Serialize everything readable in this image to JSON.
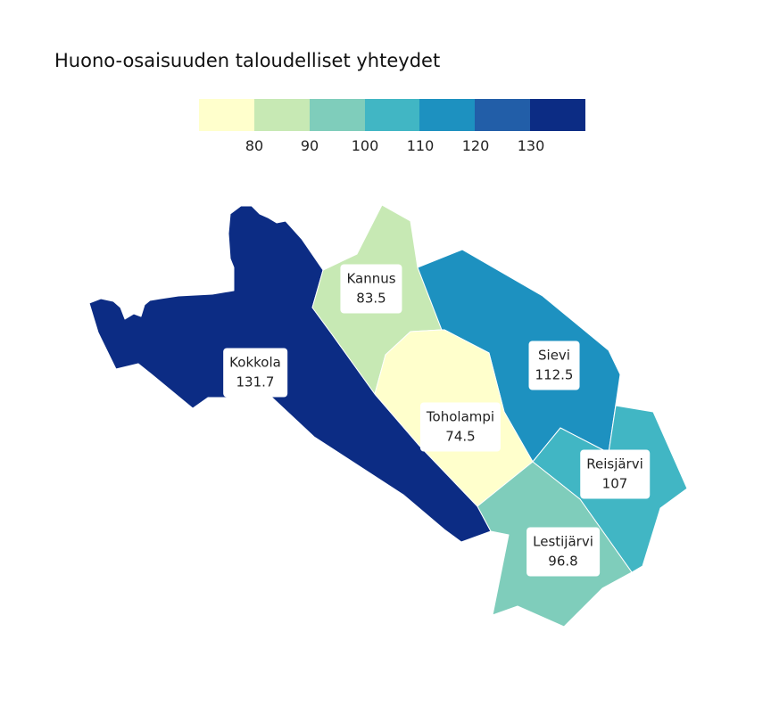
{
  "title": "Huono-osaisuuden taloudelliset yhteydet",
  "legend": {
    "colors": [
      "#ffffcc",
      "#c7e9b4",
      "#7fcdbb",
      "#41b6c4",
      "#1d91c0",
      "#225ea8",
      "#0c2c84"
    ],
    "ticks": [
      "80",
      "90",
      "100",
      "110",
      "120",
      "130"
    ]
  },
  "regions": [
    {
      "name": "Kokkola",
      "value": "131.7",
      "color": "#0c2c84"
    },
    {
      "name": "Kannus",
      "value": "83.5",
      "color": "#c7e9b4"
    },
    {
      "name": "Sievi",
      "value": "112.5",
      "color": "#1d91c0"
    },
    {
      "name": "Toholampi",
      "value": "74.5",
      "color": "#ffffcc"
    },
    {
      "name": "Reisjärvi",
      "value": "107",
      "color": "#41b6c4"
    },
    {
      "name": "Lestijärvi",
      "value": "96.8",
      "color": "#7fcdbb"
    }
  ]
}
